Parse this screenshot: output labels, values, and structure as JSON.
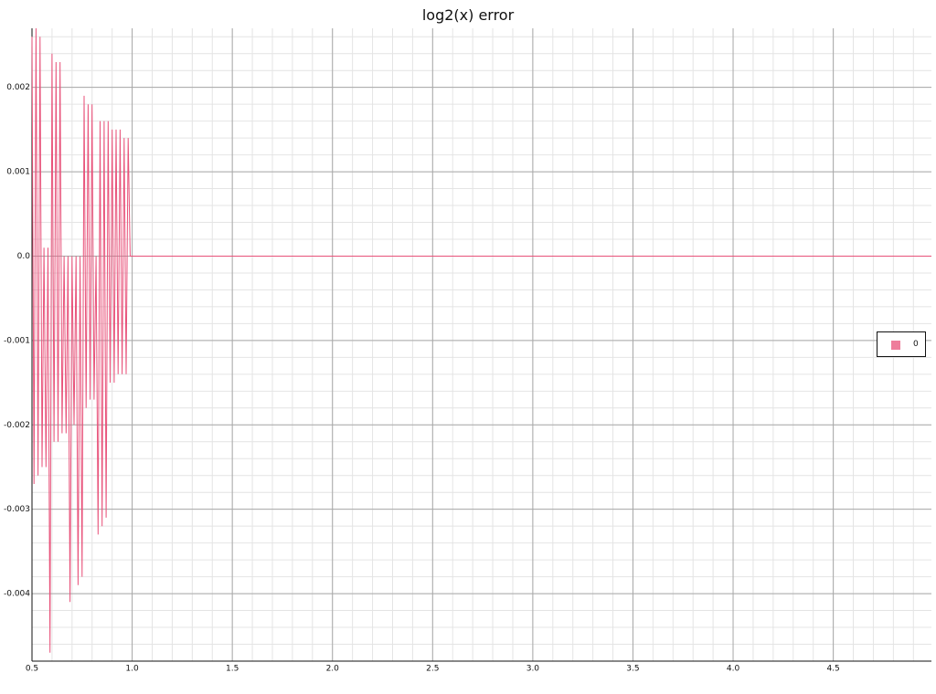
{
  "chart_data": {
    "type": "line",
    "title": "log2(x) error",
    "xlabel": "",
    "ylabel": "",
    "xlim": [
      0.5,
      4.99
    ],
    "ylim": [
      -0.0048,
      0.0027
    ],
    "x_ticks": [
      "0.5",
      "1.0",
      "1.5",
      "2.0",
      "2.5",
      "3.0",
      "3.5",
      "4.0",
      "4.5"
    ],
    "x_tick_values": [
      0.5,
      1.0,
      1.5,
      2.0,
      2.5,
      3.0,
      3.5,
      4.0,
      4.5
    ],
    "y_ticks": [
      "0.002",
      "0.001",
      "0.0",
      "-0.001",
      "-0.002",
      "-0.003",
      "-0.004"
    ],
    "y_tick_values": [
      0.002,
      0.001,
      0.0,
      -0.001,
      -0.002,
      -0.003,
      -0.004
    ],
    "grid": true,
    "legend_position": "right",
    "series": [
      {
        "name": "0",
        "color": "#e8527a",
        "x": [
          0.5,
          0.51,
          0.52,
          0.53,
          0.54,
          0.55,
          0.56,
          0.57,
          0.58,
          0.59,
          0.6,
          0.61,
          0.62,
          0.63,
          0.64,
          0.65,
          0.66,
          0.67,
          0.68,
          0.69,
          0.7,
          0.71,
          0.72,
          0.73,
          0.74,
          0.75,
          0.76,
          0.77,
          0.78,
          0.79,
          0.8,
          0.81,
          0.82,
          0.83,
          0.84,
          0.85,
          0.86,
          0.87,
          0.88,
          0.89,
          0.9,
          0.91,
          0.92,
          0.93,
          0.94,
          0.95,
          0.96,
          0.97,
          0.98,
          0.99,
          1.0,
          1.02,
          1.2,
          1.4,
          1.6,
          2.0,
          2.5,
          3.0,
          3.5,
          4.0,
          4.5,
          4.99
        ],
        "y": [
          0.0026,
          -0.0027,
          0.0027,
          -0.0026,
          0.0026,
          -0.0025,
          0.0001,
          -0.0025,
          0.0001,
          -0.0047,
          0.0024,
          -0.0022,
          0.0023,
          -0.0022,
          0.0023,
          -0.0021,
          0.0,
          -0.0021,
          0.0,
          -0.0041,
          0.0,
          -0.002,
          0.0,
          -0.0039,
          0.0,
          -0.0038,
          0.0019,
          -0.0018,
          0.0018,
          -0.0017,
          0.0018,
          -0.0017,
          0.0,
          -0.0033,
          0.0016,
          -0.0032,
          0.0016,
          -0.0031,
          0.0016,
          -0.0015,
          0.0015,
          -0.0015,
          0.0015,
          -0.0014,
          0.0015,
          -0.0014,
          0.0014,
          -0.0014,
          0.0014,
          0.0,
          0.0,
          0.0,
          0.0,
          0.0,
          0.0,
          0.0,
          0.0,
          0.0,
          0.0,
          0.0,
          0.0,
          0.0
        ]
      }
    ]
  }
}
